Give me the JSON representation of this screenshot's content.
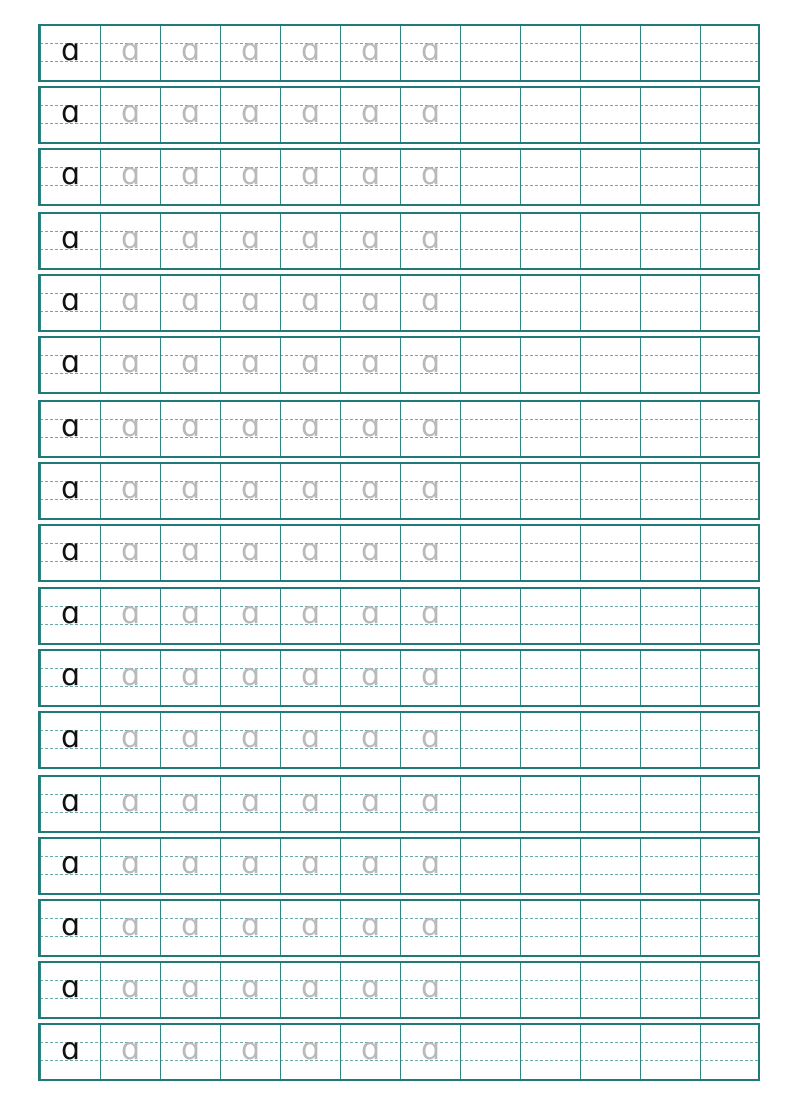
{
  "worksheet": {
    "model_letter": "ɑ",
    "trace_count": 6,
    "columns": 12,
    "row_count": 17,
    "colors": {
      "grid": "#1f7a78",
      "dashed": "#6aa8a6",
      "model": "#111111",
      "trace": "#b9b9b9"
    }
  }
}
